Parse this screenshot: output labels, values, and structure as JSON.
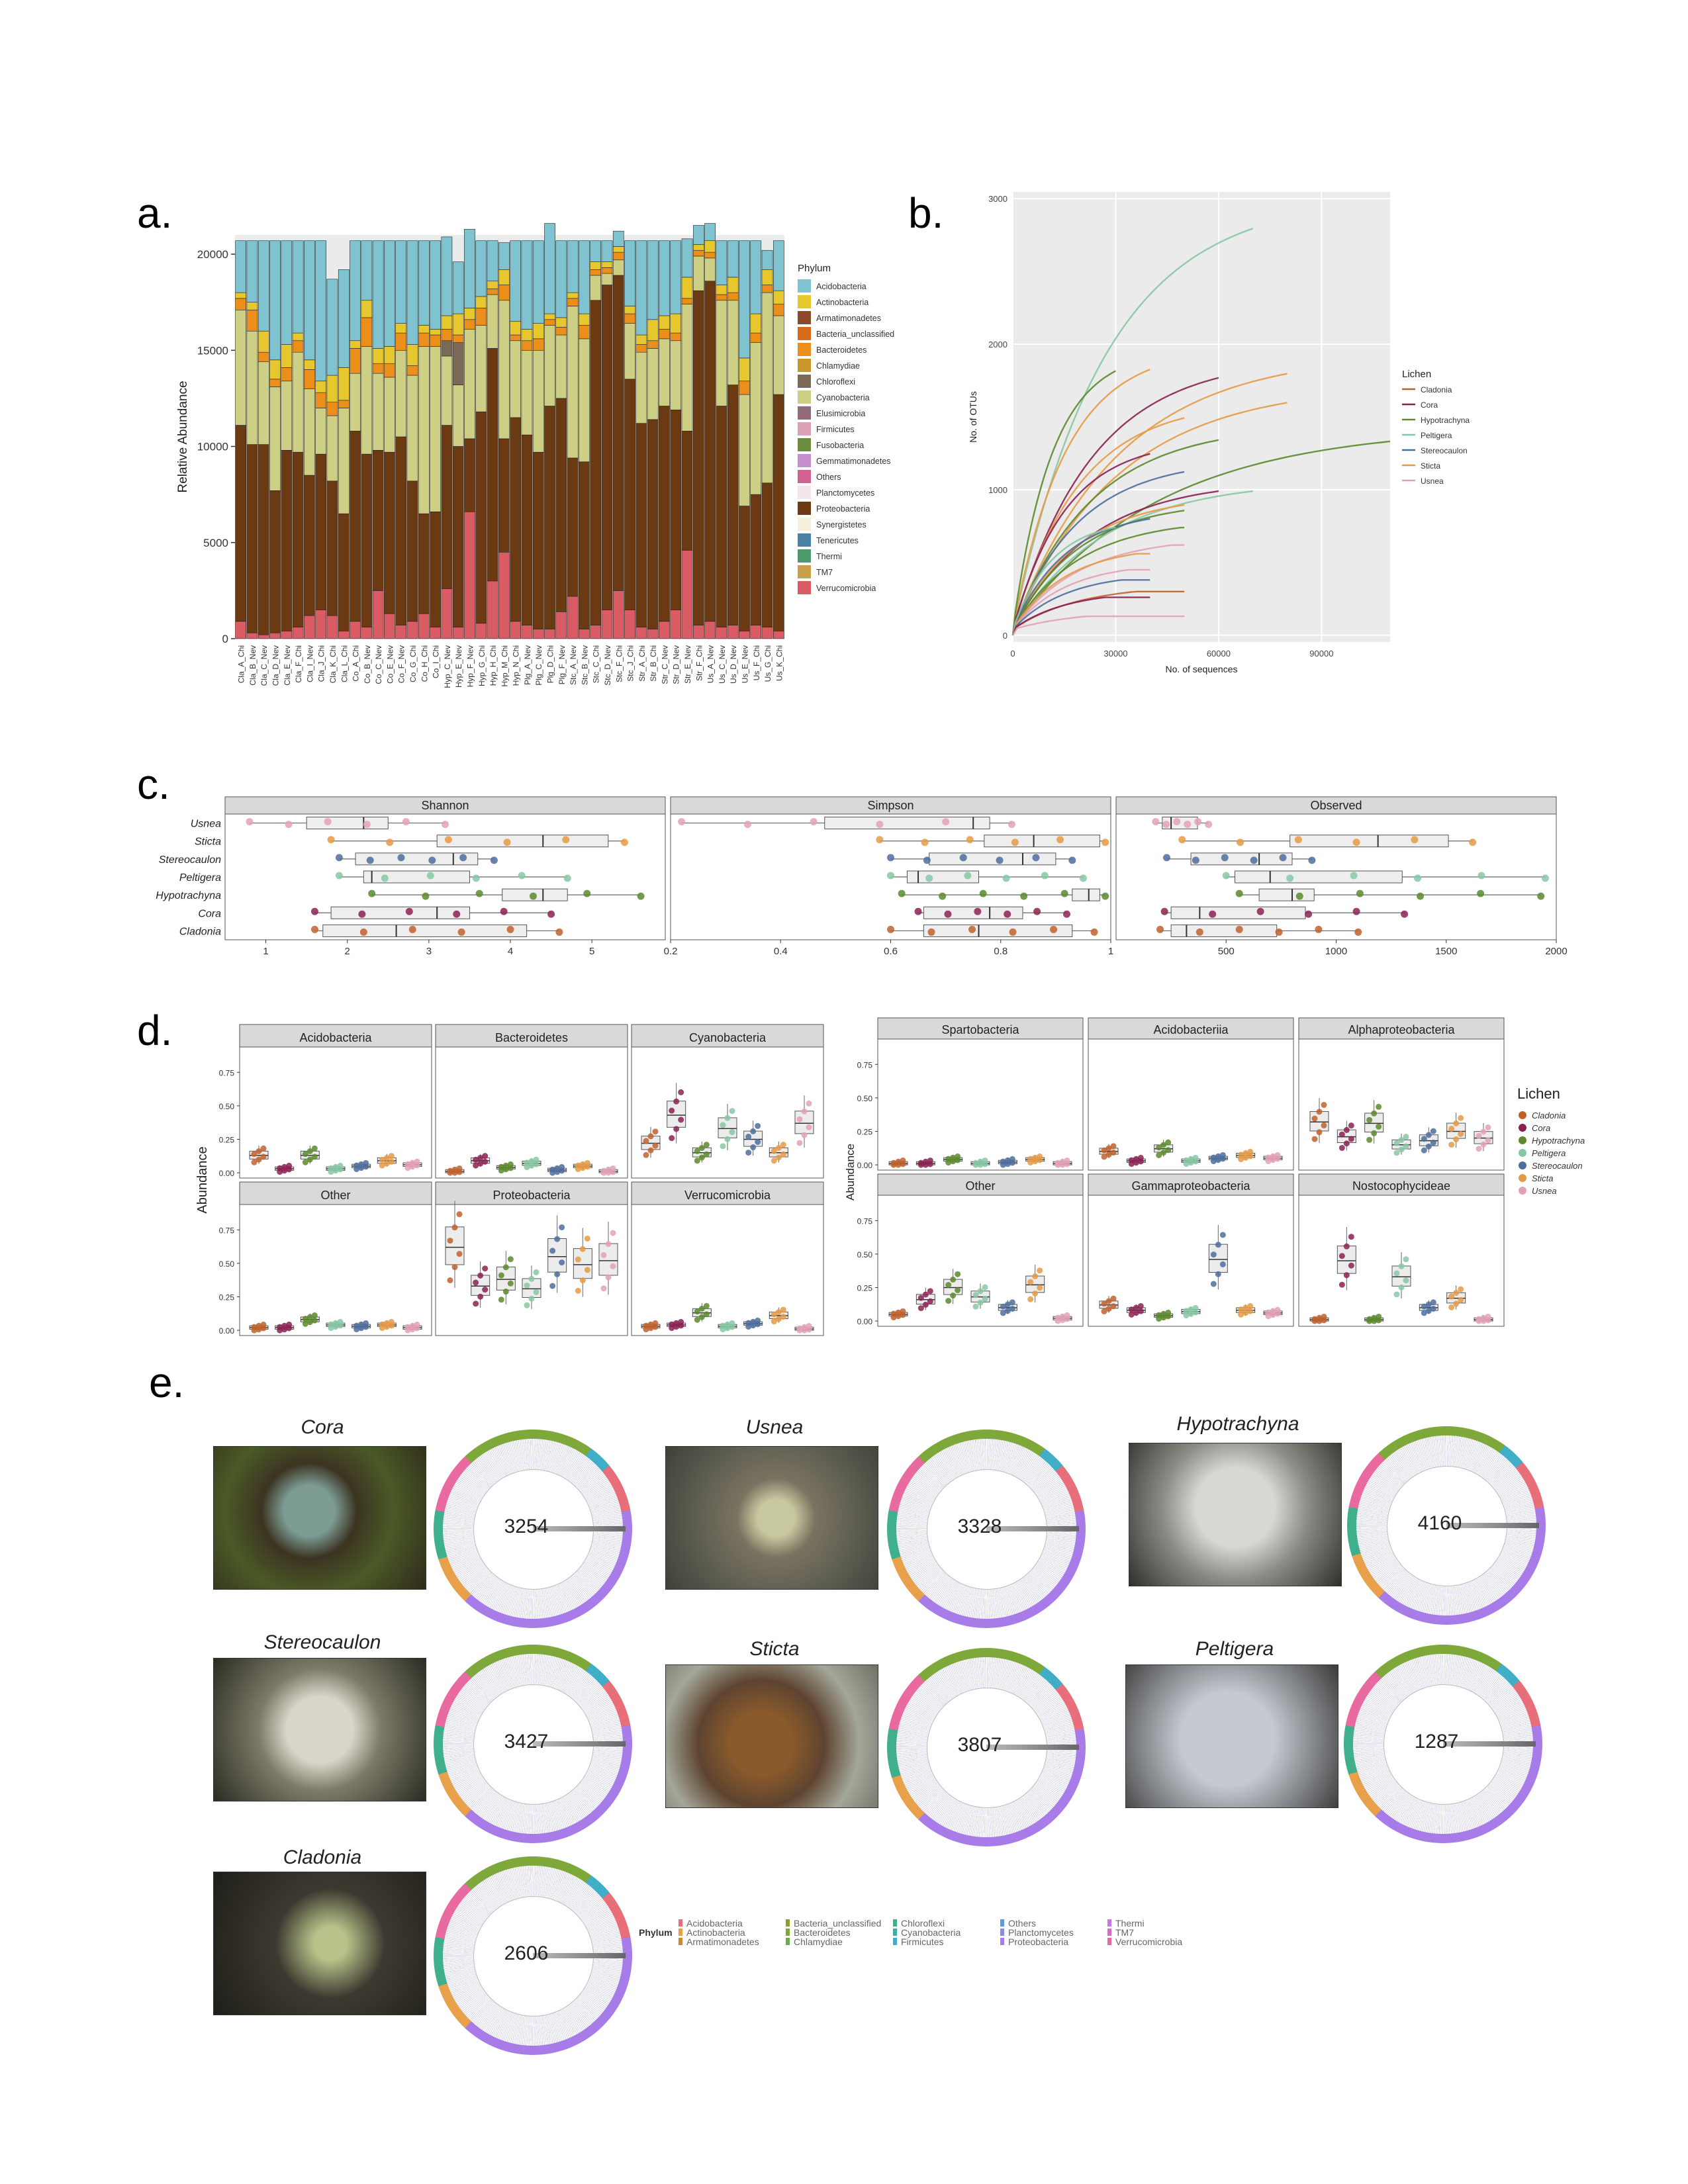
{
  "labels": {
    "a": "a.",
    "b": "b.",
    "c": "c.",
    "d": "d.",
    "e": "e."
  },
  "colors": {
    "Acidobacteria": "#7fc3d1",
    "Actinobacteria": "#e6c72d",
    "Armatimonadetes": "#8b4a2b",
    "Bacteria_unclassified": "#d86a1d",
    "Bacteroidetes": "#ec8f1a",
    "Chlamydiae": "#c9962a",
    "Chloroflexi": "#7a6a55",
    "Cyanobacteria": "#cdcf84",
    "Elusimicrobia": "#8f6b7c",
    "Firmicutes": "#d9a3b5",
    "Fusobacteria": "#6a8c3c",
    "Gemmatimonadetes": "#c88fd0",
    "Others": "#cf6290",
    "Planctomycetes": "#f4e6ea",
    "Proteobacteria": "#6b3a12",
    "Synergistetes": "#f5f0de",
    "Tenericutes": "#4a83a3",
    "Thermi": "#4b9a6c",
    "TM7": "#c7a24a",
    "Verrucomicrobia": "#d95b63"
  },
  "lichen_colors": {
    "Cladonia": "#c0622b",
    "Cora": "#8b2153",
    "Hypotrachyna": "#5c8a2c",
    "Peltigera": "#86c8a3",
    "Stereocaulon": "#4e6f9e",
    "Sticta": "#e69a45",
    "Usnea": "#e3a1b6"
  },
  "chart_data": [
    {
      "id": "a",
      "type": "bar",
      "stacked": true,
      "ylabel": "Relative Abundance",
      "ylim": [
        0,
        21000
      ],
      "yticks": [
        0,
        5000,
        10000,
        15000,
        20000
      ],
      "legend_title": "Phylum",
      "legend_position": "right",
      "categories": [
        "Cla_A_Chi",
        "Cla_B_Nev",
        "Cla_C_Nev",
        "Cla_D_Nev",
        "Cla_E_Nev",
        "Cla_F_Chi",
        "Cla_I_Nev",
        "Cla_J_Chi",
        "Cla_K_Chi",
        "Cla_L_Chi",
        "Co_A_Chi",
        "Co_B_Nev",
        "Co_C_Nev",
        "Co_E_Nev",
        "Co_F_Nev",
        "Co_G_Chi",
        "Co_H_Chi",
        "Co_I_Chi",
        "Hyp_C_Nev",
        "Hyp_E_Nev",
        "Hyp_F_Nev",
        "Hyp_G_Chi",
        "Hyp_H_Chi",
        "Hyp_M_Chi",
        "Hyp_N_Chi",
        "Plg_A_Nev",
        "Plg_C_Nev",
        "Plg_D_Chi",
        "Plg_F_Nev",
        "Stc_A_Nev",
        "Stc_B_Nev",
        "Stc_C_Chi",
        "Stc_D_Nev",
        "Stc_F_Chi",
        "Stc_J_Chi",
        "Str_A_Chi",
        "Str_B_Chi",
        "Str_C_Nev",
        "Str_D_Nev",
        "Str_E_Nev",
        "Str_F_Chi",
        "Us_A_Nev",
        "Us_C_Nev",
        "Us_D_Nev",
        "Us_E_Nev",
        "Us_F_Chi",
        "Us_G_Chi",
        "Us_K_Chi"
      ],
      "series": [
        {
          "name": "Verrucomicrobia",
          "values": [
            900,
            300,
            200,
            300,
            400,
            600,
            1200,
            1500,
            1200,
            400,
            900,
            600,
            2500,
            1300,
            700,
            900,
            1300,
            600,
            2600,
            600,
            6600,
            800,
            3000,
            4500,
            900,
            700,
            500,
            500,
            1400,
            2200,
            500,
            700,
            1500,
            2500,
            1500,
            600,
            500,
            900,
            1500,
            4600,
            700,
            900,
            600,
            700,
            400,
            700,
            600,
            400
          ]
        },
        {
          "name": "Proteobacteria",
          "values": [
            10200,
            9800,
            9900,
            7400,
            9400,
            9100,
            7300,
            8100,
            7000,
            6100,
            9900,
            9000,
            7300,
            8400,
            9800,
            7300,
            5200,
            6000,
            8500,
            9400,
            3800,
            11000,
            12100,
            5900,
            10600,
            9900,
            9200,
            11600,
            11100,
            7200,
            8700,
            16900,
            16900,
            16400,
            12000,
            10600,
            10900,
            11200,
            10400,
            6200,
            17400,
            17700,
            11500,
            12500,
            6500,
            6800,
            7500,
            12300
          ]
        },
        {
          "name": "Cyanobacteria",
          "values": [
            6000,
            5900,
            4300,
            5400,
            3600,
            5200,
            4500,
            2400,
            3400,
            5500,
            3000,
            5600,
            4000,
            3900,
            4500,
            5500,
            8700,
            8600,
            3600,
            3200,
            5700,
            4500,
            2800,
            7200,
            4000,
            4400,
            5300,
            4200,
            3300,
            7900,
            6400,
            1300,
            600,
            800,
            2900,
            3700,
            3700,
            3500,
            3600,
            6600,
            1800,
            1200,
            5500,
            4400,
            5800,
            7900,
            9900,
            4100
          ]
        },
        {
          "name": "Chloroflexi",
          "values": [
            0,
            0,
            0,
            0,
            0,
            0,
            0,
            0,
            0,
            0,
            0,
            0,
            0,
            0,
            0,
            0,
            0,
            0,
            800,
            2200,
            0,
            0,
            0,
            0,
            0,
            0,
            0,
            0,
            0,
            0,
            0,
            0,
            0,
            0,
            0,
            0,
            0,
            0,
            0,
            0,
            0,
            0,
            0,
            0,
            0,
            0,
            0,
            0
          ]
        },
        {
          "name": "Bacteroidetes",
          "values": [
            600,
            1100,
            500,
            400,
            700,
            600,
            1000,
            800,
            700,
            400,
            1300,
            1500,
            500,
            700,
            900,
            500,
            700,
            600,
            600,
            400,
            500,
            900,
            300,
            800,
            300,
            500,
            600,
            300,
            400,
            400,
            700,
            300,
            300,
            400,
            500,
            400,
            400,
            500,
            400,
            300,
            300,
            300,
            300,
            400,
            700,
            500,
            400,
            600
          ]
        },
        {
          "name": "Actinobacteria",
          "values": [
            300,
            400,
            1100,
            1000,
            1200,
            400,
            500,
            600,
            1400,
            1700,
            400,
            900,
            800,
            900,
            500,
            1100,
            400,
            300,
            700,
            1100,
            600,
            600,
            400,
            800,
            700,
            600,
            800,
            300,
            500,
            300,
            600,
            400,
            300,
            300,
            400,
            500,
            1100,
            700,
            1000,
            1100,
            300,
            600,
            500,
            800,
            1200,
            1000,
            800,
            700
          ]
        },
        {
          "name": "Acidobacteria",
          "values": [
            2700,
            3200,
            4700,
            6200,
            5400,
            4800,
            6200,
            7300,
            5000,
            5100,
            5200,
            3100,
            5600,
            5500,
            4300,
            5400,
            4400,
            4600,
            4100,
            2700,
            4100,
            2900,
            2100,
            1400,
            4200,
            4600,
            4300,
            4700,
            4000,
            2700,
            3800,
            1100,
            1100,
            800,
            3400,
            4900,
            4100,
            3900,
            3800,
            2000,
            1000,
            900,
            2300,
            1900,
            6100,
            3800,
            1000,
            2600
          ]
        }
      ]
    },
    {
      "id": "b",
      "type": "line",
      "xlabel": "No. of sequences",
      "ylabel": "No. of OTUs",
      "xlim": [
        0,
        110000
      ],
      "ylim": [
        0,
        3000
      ],
      "xticks": [
        0,
        30000,
        60000,
        90000
      ],
      "yticks": [
        0,
        1000,
        2000,
        3000
      ],
      "legend_title": "Lichen",
      "legend_position": "right",
      "curves": [
        {
          "lichen": "Peltigera",
          "xmax": 70000,
          "ymax": 2900
        },
        {
          "lichen": "Hypotrachyna",
          "xmax": 110000,
          "ymax": 1360
        },
        {
          "lichen": "Sticta",
          "xmax": 80000,
          "ymax": 1850
        },
        {
          "lichen": "Cora",
          "xmax": 60000,
          "ymax": 1820
        },
        {
          "lichen": "Sticta",
          "xmax": 80000,
          "ymax": 1640
        },
        {
          "lichen": "Sticta",
          "xmax": 40000,
          "ymax": 1880
        },
        {
          "lichen": "Hypotrachyna",
          "xmax": 30000,
          "ymax": 1870
        },
        {
          "lichen": "Sticta",
          "xmax": 50000,
          "ymax": 1530
        },
        {
          "lichen": "Hypotrachyna",
          "xmax": 60000,
          "ymax": 1370
        },
        {
          "lichen": "Cora",
          "xmax": 40000,
          "ymax": 1270
        },
        {
          "lichen": "Stereocaulon",
          "xmax": 50000,
          "ymax": 1140
        },
        {
          "lichen": "Peltigera",
          "xmax": 70000,
          "ymax": 1000
        },
        {
          "lichen": "Cora",
          "xmax": 60000,
          "ymax": 1000
        },
        {
          "lichen": "Sticta",
          "xmax": 50000,
          "ymax": 900
        },
        {
          "lichen": "Hypotrachyna",
          "xmax": 50000,
          "ymax": 860
        },
        {
          "lichen": "Stereocaulon",
          "xmax": 40000,
          "ymax": 800
        },
        {
          "lichen": "Peltigera",
          "xmax": 30000,
          "ymax": 740
        },
        {
          "lichen": "Hypotrachyna",
          "xmax": 50000,
          "ymax": 740
        },
        {
          "lichen": "Usnea",
          "xmax": 50000,
          "ymax": 620
        },
        {
          "lichen": "Sticta",
          "xmax": 40000,
          "ymax": 560
        },
        {
          "lichen": "Usnea",
          "xmax": 40000,
          "ymax": 450
        },
        {
          "lichen": "Stereocaulon",
          "xmax": 40000,
          "ymax": 380
        },
        {
          "lichen": "Cladonia",
          "xmax": 50000,
          "ymax": 300
        },
        {
          "lichen": "Cora",
          "xmax": 40000,
          "ymax": 260
        },
        {
          "lichen": "Usnea",
          "xmax": 50000,
          "ymax": 130
        }
      ]
    },
    {
      "id": "c",
      "type": "box",
      "facets": [
        {
          "title": "Shannon",
          "xlim": [
            0.5,
            5.9
          ],
          "ticks": [
            1,
            2,
            3,
            4,
            5
          ]
        },
        {
          "title": "Simpson",
          "xlim": [
            0.2,
            1.0
          ],
          "ticks": [
            0.2,
            0.4,
            0.6,
            0.8,
            1.0
          ]
        },
        {
          "title": "Observed",
          "xlim": [
            0,
            2000
          ],
          "ticks": [
            500,
            1000,
            1500,
            2000
          ]
        }
      ],
      "groups": [
        "Usnea",
        "Sticta",
        "Stereocaulon",
        "Peltigera",
        "Hypotrachyna",
        "Cora",
        "Cladonia"
      ],
      "boxes": {
        "Shannon": [
          [
            0.8,
            1.5,
            2.2,
            2.5,
            3.2
          ],
          [
            1.8,
            3.1,
            4.4,
            5.2,
            5.4
          ],
          [
            1.9,
            2.1,
            3.3,
            3.6,
            3.8
          ],
          [
            1.9,
            2.2,
            2.3,
            3.5,
            4.7
          ],
          [
            2.3,
            3.9,
            4.4,
            4.7,
            5.6
          ],
          [
            1.6,
            1.8,
            3.1,
            3.5,
            4.5
          ],
          [
            1.6,
            1.7,
            2.6,
            4.2,
            4.6
          ]
        ],
        "Simpson": [
          [
            0.22,
            0.48,
            0.75,
            0.78,
            0.82
          ],
          [
            0.58,
            0.77,
            0.86,
            0.98,
            0.99
          ],
          [
            0.6,
            0.67,
            0.84,
            0.9,
            0.93
          ],
          [
            0.6,
            0.63,
            0.65,
            0.76,
            0.95
          ],
          [
            0.62,
            0.93,
            0.96,
            0.98,
            0.99
          ],
          [
            0.65,
            0.66,
            0.78,
            0.84,
            0.92
          ],
          [
            0.6,
            0.66,
            0.76,
            0.93,
            0.97
          ]
        ],
        "Observed": [
          [
            180,
            210,
            250,
            370,
            420
          ],
          [
            300,
            790,
            1190,
            1510,
            1620
          ],
          [
            230,
            340,
            650,
            800,
            890
          ],
          [
            500,
            540,
            700,
            1300,
            1950
          ],
          [
            560,
            650,
            800,
            900,
            1930
          ],
          [
            220,
            250,
            380,
            860,
            1310
          ],
          [
            200,
            250,
            320,
            730,
            1100
          ]
        ]
      }
    },
    {
      "id": "d_left",
      "type": "box",
      "ylabel": "Abundance",
      "ylim": [
        0,
        0.9
      ],
      "yticks": [
        0.0,
        0.25,
        0.5,
        0.75
      ],
      "groups": [
        "Cladonia",
        "Cora",
        "Hypotrachyna",
        "Peltigera",
        "Stereocaulon",
        "Sticta",
        "Usnea"
      ],
      "facets": [
        {
          "title": "Acidobacteria",
          "medians": [
            0.13,
            0.03,
            0.13,
            0.03,
            0.05,
            0.09,
            0.06
          ]
        },
        {
          "title": "Bacteroidetes",
          "medians": [
            0.01,
            0.09,
            0.04,
            0.07,
            0.02,
            0.05,
            0.01
          ]
        },
        {
          "title": "Cyanobacteria",
          "medians": [
            0.22,
            0.43,
            0.15,
            0.33,
            0.25,
            0.15,
            0.37
          ]
        },
        {
          "title": "Other",
          "medians": [
            0.02,
            0.02,
            0.08,
            0.04,
            0.03,
            0.04,
            0.02
          ]
        },
        {
          "title": "Proteobacteria",
          "medians": [
            0.62,
            0.33,
            0.38,
            0.31,
            0.55,
            0.49,
            0.52
          ]
        },
        {
          "title": "Verrucomicrobia",
          "medians": [
            0.03,
            0.04,
            0.13,
            0.03,
            0.05,
            0.11,
            0.01
          ]
        }
      ]
    },
    {
      "id": "d_right",
      "type": "box",
      "ylabel": "Abundance",
      "ylim": [
        0,
        0.9
      ],
      "yticks": [
        0.0,
        0.25,
        0.5,
        0.75
      ],
      "legend_title": "Lichen",
      "legend_position": "right",
      "groups": [
        "Cladonia",
        "Cora",
        "Hypotrachyna",
        "Peltigera",
        "Stereocaulon",
        "Sticta",
        "Usnea"
      ],
      "facets": [
        {
          "title": "Spartobacteria",
          "medians": [
            0.01,
            0.01,
            0.04,
            0.01,
            0.02,
            0.04,
            0.01
          ]
        },
        {
          "title": "Acidobacteriia",
          "medians": [
            0.1,
            0.03,
            0.12,
            0.03,
            0.05,
            0.07,
            0.05
          ]
        },
        {
          "title": "Alphaproteobacteria",
          "medians": [
            0.32,
            0.21,
            0.31,
            0.15,
            0.18,
            0.25,
            0.2
          ]
        },
        {
          "title": "Other",
          "medians": [
            0.05,
            0.16,
            0.25,
            0.18,
            0.1,
            0.27,
            0.02
          ]
        },
        {
          "title": "Gammaproteobacteria",
          "medians": [
            0.12,
            0.08,
            0.04,
            0.07,
            0.46,
            0.08,
            0.06
          ]
        },
        {
          "title": "Nostocophycideae",
          "medians": [
            0.01,
            0.45,
            0.01,
            0.33,
            0.1,
            0.17,
            0.01
          ]
        }
      ]
    }
  ],
  "panel_e": {
    "legend_title": "Phylum",
    "legend_items": [
      "Acidobacteria",
      "Actinobacteria",
      "Armatimonadetes",
      "Bacteria_unclassified",
      "Bacteroidetes",
      "Chlamydiae",
      "Chloroflexi",
      "Cyanobacteria",
      "Firmicutes",
      "Others",
      "Planctomycetes",
      "Proteobacteria",
      "Thermi",
      "TM7",
      "Verrucomicrobia"
    ],
    "legend_colors": [
      "#e86f7a",
      "#e8a04a",
      "#c98a3a",
      "#8f9e2e",
      "#7fa83b",
      "#6fa94c",
      "#3fb08b",
      "#3ab0a8",
      "#41aec8",
      "#5a9be0",
      "#8a8ae8",
      "#a77be8",
      "#c978e0",
      "#d86cc2",
      "#e86aa0"
    ],
    "items": [
      {
        "genus": "Cora",
        "otus": "3254"
      },
      {
        "genus": "Usnea",
        "otus": "3328"
      },
      {
        "genus": "Hypotrachyna",
        "otus": "4160"
      },
      {
        "genus": "Stereocaulon",
        "otus": "3427"
      },
      {
        "genus": "Sticta",
        "otus": "3807"
      },
      {
        "genus": "Peltigera",
        "otus": "1287"
      },
      {
        "genus": "Cladonia",
        "otus": "2606"
      }
    ]
  }
}
